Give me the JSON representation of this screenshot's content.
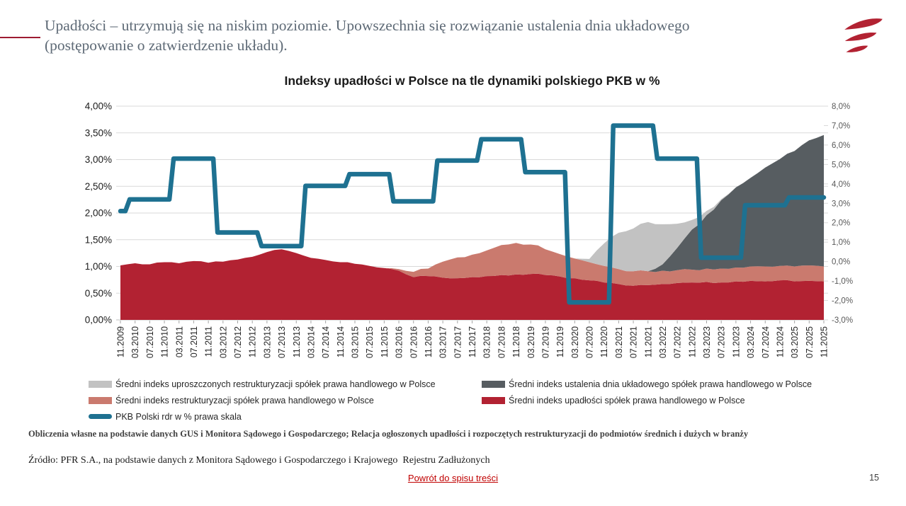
{
  "slide": {
    "title": "Upadłości – utrzymują się na niskim poziomie. Upowszechnia się rozwiązanie ustalenia dnia układowego (postępowanie o zatwierdzenie układu).",
    "footnote_bold": "Obliczenia własne na podstawie danych GUS i Monitora Sądowego i Gospodarczego; Relacja ogłoszonych upadłości i rozpoczętych restrukturyzacji do podmiotów średnich i dużych w branży",
    "source_line": "Źródło: PFR S.A., na podstawie danych z Monitora Sądowego i Gospodarczego i Krajowego  Rejestru Zadłużonych",
    "back_link": "Powrót do spisu treści",
    "page_number": "15",
    "accent_color": "#9E1B32",
    "logo_color": "#B22232"
  },
  "chart_data": {
    "type": "area+line",
    "title": "Indeksy upadłości w Polsce na tle dynamiki polskiego PKB w %",
    "x_labels": [
      "11.2009",
      "03.2010",
      "07.2010",
      "11.2010",
      "03.2011",
      "07.2011",
      "11.2011",
      "03.2012",
      "07.2012",
      "11.2012",
      "03.2013",
      "07.2013",
      "11.2013",
      "03.2014",
      "07.2014",
      "11.2014",
      "03.2015",
      "07.2015",
      "11.2015",
      "03.2016",
      "07.2016",
      "11.2016",
      "03.2017",
      "07.2017",
      "11.2017",
      "03.2018",
      "07.2018",
      "11.2018",
      "03.2019",
      "07.2019",
      "11.2019",
      "03.2020",
      "07.2020",
      "11.2020",
      "03.2021",
      "07.2021",
      "11.2021",
      "03.2022",
      "07.2022",
      "11.2022",
      "03.2023",
      "07.2023",
      "11.2023",
      "03.2024",
      "07.2024",
      "11.2024",
      "03.2025",
      "07.2025",
      "11.2025"
    ],
    "left_axis": {
      "min": 0,
      "max": 4,
      "tick_labels": [
        "4,00%",
        "3,50%",
        "3,00%",
        "2,50%",
        "2,00%",
        "1,50%",
        "1,00%",
        "0,50%",
        "0,00%"
      ]
    },
    "right_axis": {
      "min": -3,
      "max": 8,
      "tick_labels": [
        "8,0%",
        "7,0%",
        "6,0%",
        "5,0%",
        "4,0%",
        "3,0%",
        "2,0%",
        "1,0%",
        "0,0%",
        "-1,0%",
        "-2,0%",
        "-3,0%"
      ]
    },
    "grid": true,
    "legend_position": "bottom, two columns",
    "series": [
      {
        "name": "Średni indeks upadłości spółek prawa handlowego w Polsce",
        "type": "area",
        "stack": true,
        "axis": "left",
        "color": "#B22232",
        "values": [
          1.02,
          1.06,
          1.04,
          1.08,
          1.06,
          1.1,
          1.07,
          1.09,
          1.13,
          1.18,
          1.27,
          1.32,
          1.25,
          1.16,
          1.12,
          1.08,
          1.05,
          1.01,
          0.97,
          0.92,
          0.8,
          0.82,
          0.79,
          0.78,
          0.8,
          0.82,
          0.84,
          0.85,
          0.86,
          0.84,
          0.81,
          0.78,
          0.74,
          0.7,
          0.67,
          0.64,
          0.65,
          0.67,
          0.69,
          0.7,
          0.71,
          0.7,
          0.72,
          0.73,
          0.72,
          0.74,
          0.72,
          0.73,
          0.72
        ]
      },
      {
        "name": "Średni indeks restrukturyzacji spółek prawa handlowego w Polsce",
        "type": "area",
        "stack": true,
        "axis": "left",
        "color": "#CA7A6E",
        "values": [
          0,
          0,
          0,
          0,
          0,
          0,
          0,
          0,
          0,
          0,
          0,
          0,
          0,
          0,
          0,
          0,
          0,
          0,
          0,
          0.03,
          0.1,
          0.14,
          0.3,
          0.39,
          0.42,
          0.48,
          0.56,
          0.59,
          0.55,
          0.48,
          0.42,
          0.37,
          0.34,
          0.31,
          0.28,
          0.27,
          0.26,
          0.25,
          0.24,
          0.24,
          0.25,
          0.26,
          0.26,
          0.27,
          0.28,
          0.27,
          0.28,
          0.29,
          0.28
        ]
      },
      {
        "name": "Średni indeks ustalenia dnia układowego spółek prawa handlowego w Polsce",
        "type": "area",
        "stack": true,
        "axis": "left",
        "color": "#575D61",
        "values": [
          0,
          0,
          0,
          0,
          0,
          0,
          0,
          0,
          0,
          0,
          0,
          0,
          0,
          0,
          0,
          0,
          0,
          0,
          0,
          0,
          0,
          0,
          0,
          0,
          0,
          0,
          0,
          0,
          0,
          0,
          0,
          0,
          0,
          0,
          0,
          0,
          0,
          0.12,
          0.42,
          0.75,
          1.0,
          1.28,
          1.5,
          1.66,
          1.85,
          2.0,
          2.16,
          2.34,
          2.46
        ]
      },
      {
        "name": "Średni indeks uproszczonych  restrukturyzacji spółek prawa handlowego w Polsce",
        "type": "area",
        "stack": true,
        "axis": "left",
        "color": "#C2C2C2",
        "values": [
          0,
          0,
          0,
          0,
          0,
          0,
          0,
          0,
          0,
          0,
          0,
          0,
          0,
          0,
          0,
          0,
          0,
          0,
          0,
          0,
          0,
          0,
          0,
          0,
          0,
          0,
          0,
          0,
          0,
          0,
          0,
          0,
          0.06,
          0.42,
          0.68,
          0.8,
          0.92,
          0.75,
          0.45,
          0.18,
          0.08,
          0.02,
          0,
          0,
          0,
          0,
          0,
          0,
          0
        ]
      },
      {
        "name": "PKB Polski rdr w % prawa skala",
        "type": "step-line",
        "axis": "right",
        "color": "#1E7191",
        "stroke_width": 6.5,
        "values": [
          2.6,
          3.2,
          3.2,
          3.2,
          5.3,
          5.3,
          5.3,
          1.5,
          1.5,
          1.5,
          0.8,
          0.8,
          0.8,
          3.9,
          3.9,
          3.9,
          4.5,
          4.5,
          4.5,
          3.1,
          3.1,
          3.1,
          5.2,
          5.2,
          5.2,
          6.3,
          6.3,
          6.3,
          4.6,
          4.6,
          4.6,
          -2.1,
          -2.1,
          -2.1,
          7.0,
          7.0,
          7.0,
          5.3,
          5.3,
          5.3,
          0.2,
          0.2,
          0.2,
          2.9,
          2.9,
          2.9,
          3.3,
          3.3,
          3.3
        ]
      }
    ],
    "legend": {
      "columns": [
        {
          "items": [
            {
              "label": "Średni indeks uproszczonych  restrukturyzacji spółek prawa handlowego w Polsce",
              "color": "#C2C2C2",
              "shape": "rect"
            },
            {
              "label": "Średni indeks restrukturyzacji spółek prawa handlowego w Polsce",
              "color": "#CA7A6E",
              "shape": "rect"
            },
            {
              "label": "PKB Polski rdr w % prawa skala",
              "color": "#1E7191",
              "shape": "line"
            }
          ]
        },
        {
          "items": [
            {
              "label": "Średni indeks ustalenia dnia układowego spółek prawa handlowego w Polsce",
              "color": "#575D61",
              "shape": "rect"
            },
            {
              "label": "Średni indeks upadłości spółek prawa handlowego w Polsce",
              "color": "#B22232",
              "shape": "rect"
            }
          ]
        }
      ]
    }
  }
}
